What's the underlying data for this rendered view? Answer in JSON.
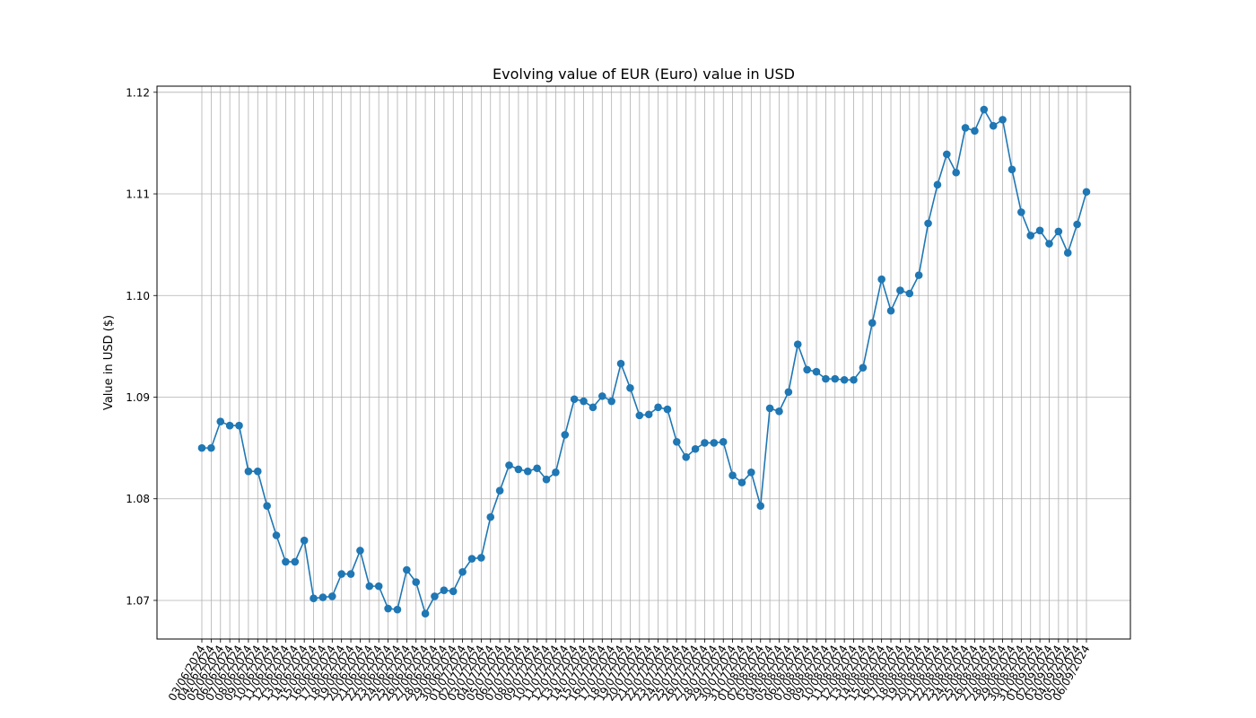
{
  "chart_data": {
    "type": "line",
    "title": "Evolving value of EUR (Euro) value in USD",
    "xlabel": "",
    "ylabel": "Value in USD ($)",
    "ylim": [
      1.0662,
      1.1206
    ],
    "yticks": [
      "1.07",
      "1.08",
      "1.09",
      "1.10",
      "1.11",
      "1.12"
    ],
    "grid": true,
    "line_color": "#1f77b4",
    "x": [
      "03/06/2024",
      "04/06/2024",
      "05/06/2024",
      "06/06/2024",
      "07/06/2024",
      "08/06/2024",
      "09/06/2024",
      "10/06/2024",
      "11/06/2024",
      "12/06/2024",
      "13/06/2024",
      "14/06/2024",
      "15/06/2024",
      "16/06/2024",
      "17/06/2024",
      "18/06/2024",
      "19/06/2024",
      "20/06/2024",
      "21/06/2024",
      "22/06/2024",
      "23/06/2024",
      "24/06/2024",
      "25/06/2024",
      "26/06/2024",
      "27/06/2024",
      "28/06/2024",
      "29/06/2024",
      "30/06/2024",
      "01/07/2024",
      "02/07/2024",
      "03/07/2024",
      "04/07/2024",
      "05/07/2024",
      "06/07/2024",
      "07/07/2024",
      "08/07/2024",
      "09/07/2024",
      "10/07/2024",
      "11/07/2024",
      "12/07/2024",
      "13/07/2024",
      "14/07/2024",
      "15/07/2024",
      "16/07/2024",
      "17/07/2024",
      "18/07/2024",
      "19/07/2024",
      "20/07/2024",
      "21/07/2024",
      "22/07/2024",
      "23/07/2024",
      "24/07/2024",
      "25/07/2024",
      "26/07/2024",
      "27/07/2024",
      "28/07/2024",
      "29/07/2024",
      "30/07/2024",
      "31/07/2024",
      "01/08/2024",
      "02/08/2024",
      "03/08/2024",
      "04/08/2024",
      "05/08/2024",
      "06/08/2024",
      "07/08/2024",
      "08/08/2024",
      "09/08/2024",
      "10/08/2024",
      "11/08/2024",
      "12/08/2024",
      "13/08/2024",
      "14/08/2024",
      "15/08/2024",
      "16/08/2024",
      "17/08/2024",
      "18/08/2024",
      "19/08/2024",
      "20/08/2024",
      "21/08/2024",
      "22/08/2024",
      "23/08/2024",
      "24/08/2024",
      "25/08/2024",
      "26/08/2024",
      "27/08/2024",
      "28/08/2024",
      "29/08/2024",
      "30/08/2024",
      "31/08/2024",
      "01/09/2024",
      "02/09/2024",
      "03/09/2024",
      "04/09/2024",
      "05/09/2024",
      "06/09/2024"
    ],
    "series": [
      {
        "values": [
          1.085,
          1.085,
          1.0876,
          1.0872,
          1.0872,
          1.0827,
          1.0827,
          1.0793,
          1.0764,
          1.0738,
          1.0738,
          1.0759,
          1.0702,
          1.0703,
          1.0704,
          1.0726,
          1.0726,
          1.0749,
          1.0714,
          1.0714,
          1.0692,
          1.0691,
          1.073,
          1.0718,
          1.0687,
          1.0704,
          1.071,
          1.0709,
          1.0728,
          1.0741,
          1.0742,
          1.0782,
          1.0808,
          1.0833,
          1.0829,
          1.0827,
          1.083,
          1.0819,
          1.0826,
          1.0863,
          1.0898,
          1.0896,
          1.089,
          1.0901,
          1.0896,
          1.0933,
          1.0909,
          1.0882,
          1.0883,
          1.089,
          1.0888,
          1.0856,
          1.0841,
          1.0849,
          1.0855,
          1.0855,
          1.0856,
          1.0823,
          1.0816,
          1.0826,
          1.0793,
          1.0889,
          1.0886,
          1.0905,
          1.0952,
          1.0927,
          1.0925,
          1.0918,
          1.0918,
          1.0917,
          1.0917,
          1.0929,
          1.0973,
          1.1016,
          1.0985,
          1.1005,
          1.1002,
          1.102,
          1.1071,
          1.1109,
          1.1139,
          1.1121,
          1.1165,
          1.1162,
          1.1183,
          1.1167,
          1.1173,
          1.1124,
          1.1082,
          1.1059,
          1.1064,
          1.1051,
          1.1063,
          1.1042,
          1.107,
          1.1102
        ]
      }
    ]
  }
}
